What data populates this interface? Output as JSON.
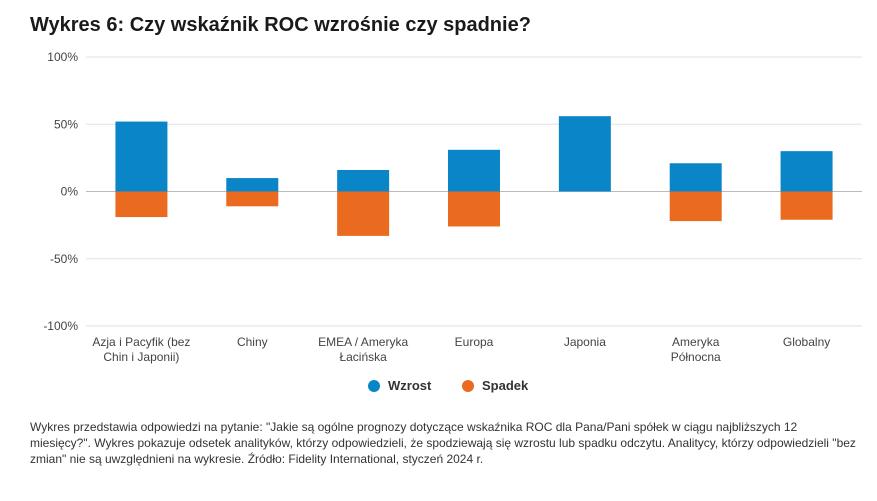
{
  "title": "Wykres 6: Czy wskaźnik ROC wzrośnie czy spadnie?",
  "colors": {
    "wzrost": "#0a86c8",
    "spadek": "#ea6a1f",
    "grid": "#e2e2e2",
    "axis": "#bbbbbb"
  },
  "chart_data": {
    "type": "bar",
    "title": "",
    "xlabel": "",
    "ylabel": "",
    "categories": [
      [
        "Azja i Pacyfik (bez",
        "Chin i Japonii)"
      ],
      [
        "Chiny"
      ],
      [
        "EMEA / Ameryka",
        "Łacińska"
      ],
      [
        "Europa"
      ],
      [
        "Japonia"
      ],
      [
        "Ameryka",
        "Północna"
      ],
      [
        "Globalny"
      ]
    ],
    "series": [
      {
        "name": "Wzrost",
        "values": [
          52,
          10,
          16,
          31,
          56,
          21,
          30
        ]
      },
      {
        "name": "Spadek",
        "values": [
          -19,
          -11,
          -33,
          -26,
          0,
          -22,
          -21
        ]
      }
    ],
    "ylim": [
      -100,
      100
    ],
    "yticks": [
      100,
      50,
      0,
      -50,
      -100
    ],
    "ytick_labels": [
      "100%",
      "50%",
      "0%",
      "-50%",
      "-100%"
    ],
    "grid": true,
    "legend": "bottom-center"
  },
  "legend": {
    "wzrost": "Wzrost",
    "spadek": "Spadek"
  },
  "note": "Wykres przedstawia odpowiedzi na pytanie: \"Jakie są ogólne prognozy dotyczące wskaźnika ROC dla Pana/Pani spółek w ciągu najbliższych 12 miesięcy?\". Wykres pokazuje odsetek analityków, którzy odpowiedzieli, że spodziewają się wzrostu lub spadku odczytu. Analitycy, którzy odpowiedzieli \"bez zmian\" nie są uwzględnieni na wykresie. Źródło: Fidelity International, styczeń 2024 r."
}
